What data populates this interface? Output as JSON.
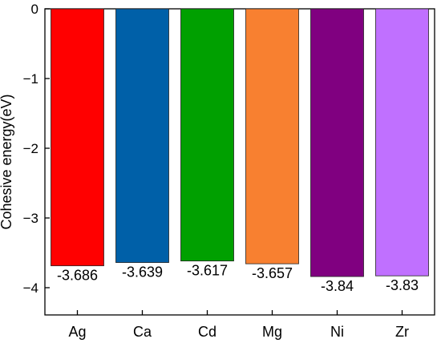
{
  "chart_data": {
    "type": "bar",
    "title": "",
    "xlabel": "",
    "ylabel": "Cohesive energy(eV)",
    "categories": [
      "Ag",
      "Ca",
      "Cd",
      "Mg",
      "Ni",
      "Zr"
    ],
    "values": [
      -3.686,
      -3.639,
      -3.617,
      -3.657,
      -3.84,
      -3.83
    ],
    "data_labels": [
      "-3.686",
      "-3.639",
      "-3.617",
      "-3.657",
      "-3.84",
      "-3.83"
    ],
    "colors": [
      "#ff0000",
      "#0060a8",
      "#00a000",
      "#f88030",
      "#800080",
      "#c070ff"
    ],
    "ylim": [
      -4.4,
      0
    ],
    "yticks": [
      0,
      -1,
      -2,
      -3,
      -4
    ],
    "ytick_labels": [
      "0",
      "−1",
      "−2",
      "−3",
      "−4"
    ],
    "grid": false,
    "legend": "none"
  }
}
